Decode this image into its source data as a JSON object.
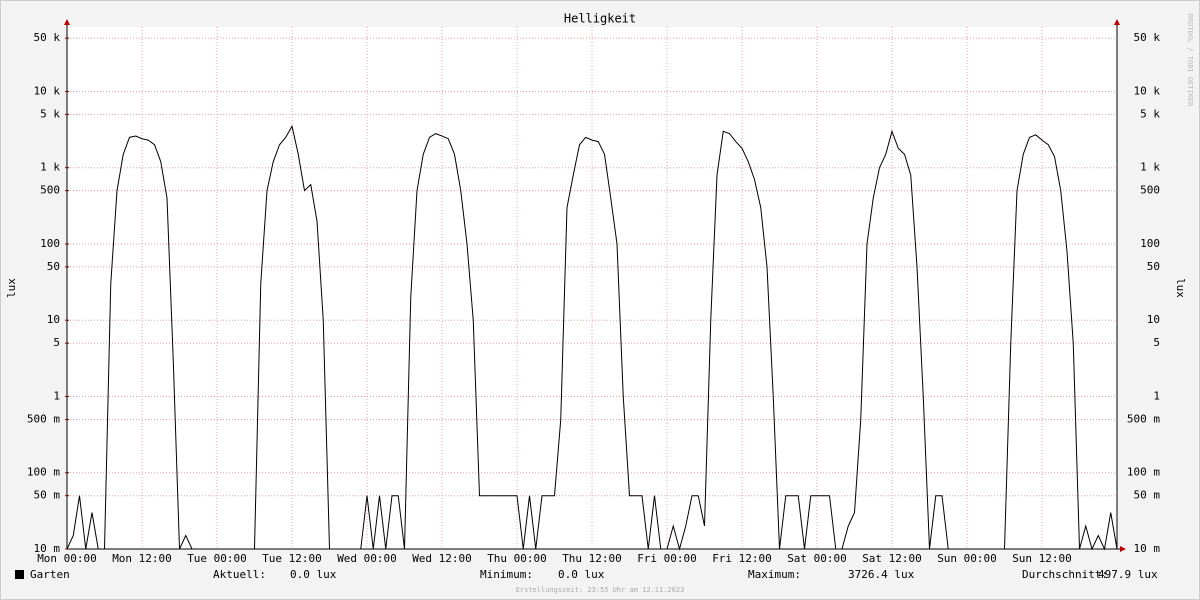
{
  "chart_data": {
    "type": "line",
    "title": "Helligkeit",
    "y_label": "lux",
    "y2_label": "lux",
    "watermark": "RRDTOOL / TOBI OETIKER",
    "footer": "Erstellungszeit: 23:55 Uhr am 12.11.2023",
    "y_scale": "log",
    "grid": true,
    "xlim": [
      0,
      168
    ],
    "ylim": [
      0.01,
      70000
    ],
    "xticks": [
      {
        "value": 0,
        "label": "Mon 00:00"
      },
      {
        "value": 12,
        "label": "Mon 12:00"
      },
      {
        "value": 24,
        "label": "Tue 00:00"
      },
      {
        "value": 36,
        "label": "Tue 12:00"
      },
      {
        "value": 48,
        "label": "Wed 00:00"
      },
      {
        "value": 60,
        "label": "Wed 12:00"
      },
      {
        "value": 72,
        "label": "Thu 00:00"
      },
      {
        "value": 84,
        "label": "Thu 12:00"
      },
      {
        "value": 96,
        "label": "Fri 00:00"
      },
      {
        "value": 108,
        "label": "Fri 12:00"
      },
      {
        "value": 120,
        "label": "Sat 00:00"
      },
      {
        "value": 132,
        "label": "Sat 12:00"
      },
      {
        "value": 144,
        "label": "Sun 00:00"
      },
      {
        "value": 156,
        "label": "Sun 12:00"
      }
    ],
    "yticks": [
      {
        "value": 0.01,
        "label": "10 m"
      },
      {
        "value": 0.05,
        "label": "50 m"
      },
      {
        "value": 0.1,
        "label": "100 m"
      },
      {
        "value": 0.5,
        "label": "500 m"
      },
      1,
      5,
      10,
      50,
      100,
      500,
      {
        "value": 1000,
        "label": "1 k"
      },
      {
        "value": 5000,
        "label": "5 k"
      },
      {
        "value": 10000,
        "label": "10 k"
      },
      {
        "value": 50000,
        "label": "50 k"
      }
    ],
    "x": [
      0,
      1,
      2,
      3,
      4,
      5,
      6,
      7,
      8,
      9,
      10,
      11,
      12,
      13,
      14,
      15,
      16,
      17,
      18,
      19,
      20,
      21,
      22,
      23,
      24,
      25,
      26,
      27,
      28,
      29,
      30,
      31,
      32,
      33,
      34,
      35,
      36,
      37,
      38,
      39,
      40,
      41,
      42,
      43,
      44,
      45,
      46,
      47,
      48,
      49,
      50,
      51,
      52,
      53,
      54,
      55,
      56,
      57,
      58,
      59,
      60,
      61,
      62,
      63,
      64,
      65,
      66,
      67,
      68,
      69,
      70,
      71,
      72,
      73,
      74,
      75,
      76,
      77,
      78,
      79,
      80,
      81,
      82,
      83,
      84,
      85,
      86,
      87,
      88,
      89,
      90,
      91,
      92,
      93,
      94,
      95,
      96,
      97,
      98,
      99,
      100,
      101,
      102,
      103,
      104,
      105,
      106,
      107,
      108,
      109,
      110,
      111,
      112,
      113,
      114,
      115,
      116,
      117,
      118,
      119,
      120,
      121,
      122,
      123,
      124,
      125,
      126,
      127,
      128,
      129,
      130,
      131,
      132,
      133,
      134,
      135,
      136,
      137,
      138,
      139,
      140,
      141,
      142,
      143,
      144,
      145,
      146,
      147,
      148,
      149,
      150,
      151,
      152,
      153,
      154,
      155,
      156,
      157,
      158,
      159,
      160,
      161,
      162,
      163,
      164,
      165,
      166,
      167,
      168
    ],
    "series": [
      {
        "name": "Garten",
        "color": "#000000",
        "values": [
          0.01,
          0.015,
          0.05,
          0.01,
          0.03,
          0.01,
          0.01,
          30,
          500,
          1500,
          2500,
          2600,
          2400,
          2300,
          2000,
          1200,
          400,
          3,
          0.01,
          0.015,
          0.01,
          0.01,
          0.01,
          0.01,
          0.01,
          0.01,
          0.01,
          0.01,
          0.01,
          0.01,
          0.01,
          30,
          500,
          1200,
          2000,
          2500,
          3500,
          1500,
          500,
          600,
          200,
          10,
          0.01,
          0.01,
          0.01,
          0.01,
          0.01,
          0.01,
          0.05,
          0.01,
          0.05,
          0.01,
          0.05,
          0.05,
          0.01,
          20,
          500,
          1500,
          2500,
          2800,
          2600,
          2400,
          1500,
          500,
          100,
          10,
          0.05,
          0.05,
          0.05,
          0.05,
          0.05,
          0.05,
          0.05,
          0.01,
          0.05,
          0.01,
          0.05,
          0.05,
          0.05,
          0.5,
          300,
          800,
          2000,
          2500,
          2300,
          2200,
          1500,
          400,
          100,
          1,
          0.05,
          0.05,
          0.05,
          0.01,
          0.05,
          0.01,
          0.01,
          0.02,
          0.01,
          0.02,
          0.05,
          0.05,
          0.02,
          10,
          800,
          3000,
          2800,
          2200,
          1800,
          1200,
          700,
          300,
          50,
          1,
          0.01,
          0.05,
          0.05,
          0.05,
          0.01,
          0.05,
          0.05,
          0.05,
          0.05,
          0.01,
          0.01,
          0.02,
          0.03,
          0.5,
          100,
          400,
          1000,
          1500,
          3000,
          1800,
          1500,
          800,
          50,
          1,
          0.01,
          0.05,
          0.05,
          0.01,
          0.01,
          0.01,
          0.01,
          0.01,
          0.01,
          0.01,
          0.01,
          0.01,
          0.01,
          5,
          500,
          1500,
          2500,
          2700,
          2300,
          2000,
          1400,
          500,
          80,
          5,
          0.01,
          0.02,
          0.01,
          0.015,
          0.01,
          0.03,
          0.01
        ]
      }
    ],
    "legend_stats": [
      {
        "label": "Aktuell:",
        "value": "0.0 lux"
      },
      {
        "label": "Minimum:",
        "value": "0.0 lux"
      },
      {
        "label": "Maximum:",
        "value": "3726.4 lux"
      },
      {
        "label": "Durchschnitt:",
        "value": "497.9 lux"
      }
    ]
  }
}
